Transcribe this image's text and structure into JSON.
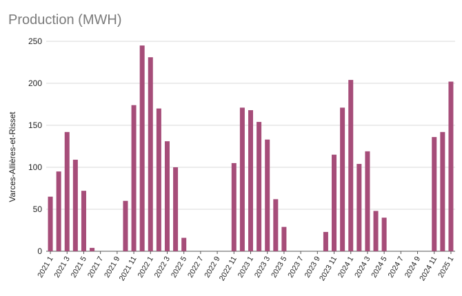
{
  "chart_data": {
    "type": "bar",
    "title": "Production (MWH)",
    "ylabel": "Varces-Allières-et-Risset",
    "xlabel": "",
    "ylim": [
      0,
      250
    ],
    "yticks": [
      0,
      50,
      100,
      150,
      200,
      250
    ],
    "grid": true,
    "bar_color": "#a64d79",
    "categories": [
      "2021 1",
      "2021 2",
      "2021 3",
      "2021 4",
      "2021 5",
      "2021 6",
      "2021 7",
      "2021 8",
      "2021 9",
      "2021 10",
      "2021 11",
      "2021 12",
      "2022 1",
      "2022 2",
      "2022 3",
      "2022 4",
      "2022 5",
      "2022 6",
      "2022 7",
      "2022 8",
      "2022 9",
      "2022 10",
      "2022 11",
      "2022 12",
      "2023 1",
      "2023 2",
      "2023 3",
      "2023 4",
      "2023 5",
      "2023 6",
      "2023 7",
      "2023 8",
      "2023 9",
      "2023 10",
      "2023 11",
      "2023 12",
      "2024 1",
      "2024 2",
      "2024 3",
      "2024 4",
      "2024 5",
      "2024 6",
      "2024 7",
      "2024 8",
      "2024 9",
      "2024 10",
      "2024 11",
      "2024 12",
      "2025 1"
    ],
    "tick_labels": [
      "2021 1",
      "2021 3",
      "2021 5",
      "2021 7",
      "2021 9",
      "2021 11",
      "2022 1",
      "2022 3",
      "2022 5",
      "2022 7",
      "2022 9",
      "2022 11",
      "2023 1",
      "2023 3",
      "2023 5",
      "2023 7",
      "2023 9",
      "2023 11",
      "2024 1",
      "2024 3",
      "2024 5",
      "2024 7",
      "2024 9",
      "2024 11",
      "2025 1"
    ],
    "values": [
      65,
      95,
      142,
      109,
      72,
      4,
      0,
      0,
      0,
      60,
      174,
      245,
      231,
      170,
      131,
      100,
      16,
      0,
      0,
      0,
      0,
      0,
      105,
      171,
      168,
      154,
      133,
      62,
      29,
      0,
      0,
      0,
      0,
      23,
      115,
      171,
      204,
      104,
      119,
      48,
      40,
      0,
      0,
      0,
      0,
      0,
      136,
      142,
      202
    ]
  }
}
